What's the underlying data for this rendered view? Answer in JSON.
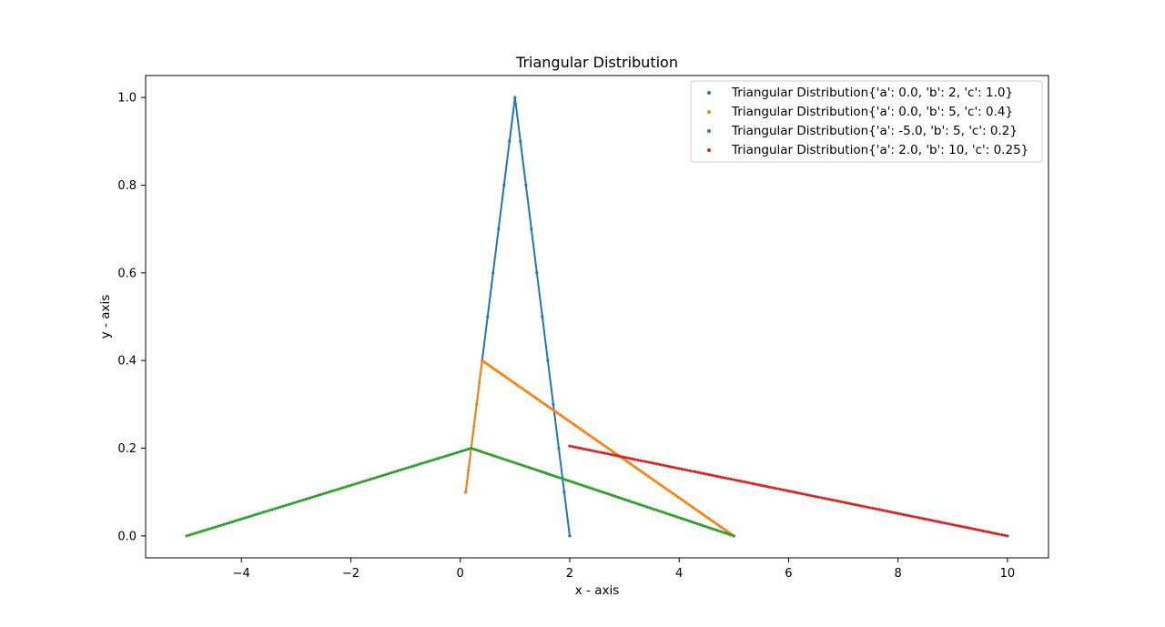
{
  "chart_data": {
    "type": "line",
    "title": "Triangular Distribution",
    "xlabel": "x - axis",
    "ylabel": "y - axis",
    "xlim": [
      -5.75,
      10.75
    ],
    "ylim": [
      -0.05,
      1.05
    ],
    "xticks": [
      -4,
      -2,
      0,
      2,
      4,
      6,
      8,
      10
    ],
    "yticks": [
      0.0,
      0.2,
      0.4,
      0.6,
      0.8,
      1.0
    ],
    "xtick_labels": [
      "−4",
      "−2",
      "0",
      "2",
      "4",
      "6",
      "8",
      "10"
    ],
    "ytick_labels": [
      "0.0",
      "0.2",
      "0.4",
      "0.6",
      "0.8",
      "1.0"
    ],
    "grid": false,
    "legend_position": "top-right",
    "series": [
      {
        "name": "Triangular Distribution{'a': 0.0, 'b': 2, 'c': 1.0}",
        "color": "#1f77b4",
        "x": [
          1.0,
          1.1,
          1.2,
          1.3,
          1.4,
          1.5,
          1.6,
          1.7,
          1.8,
          1.9,
          2.0
        ],
        "y": [
          1.0,
          0.9,
          0.8,
          0.7,
          0.6,
          0.5,
          0.4,
          0.3,
          0.2,
          0.1,
          0.0
        ],
        "points_left": [
          [
            0.9,
            0.9
          ],
          [
            0.8,
            0.8
          ],
          [
            0.7,
            0.7
          ],
          [
            0.6,
            0.6
          ],
          [
            0.5,
            0.5
          ],
          [
            0.4,
            0.4
          ],
          [
            0.3,
            0.3
          ],
          [
            0.2,
            0.2
          ],
          [
            0.1,
            0.1
          ]
        ]
      },
      {
        "name": "Triangular Distribution{'a': 0.0, 'b': 5, 'c': 0.4}",
        "color": "#ff7f0e",
        "peak": [
          0.4,
          0.4
        ],
        "start": [
          0.1,
          0.1
        ],
        "end": [
          5.0,
          0.0
        ]
      },
      {
        "name": "Triangular Distribution{'a': -5.0, 'b': 5, 'c': 0.2}",
        "color": "#2ca02c",
        "peak": [
          0.2,
          0.2
        ],
        "start": [
          -5.0,
          0.0
        ],
        "end": [
          5.0,
          0.0
        ]
      },
      {
        "name": "Triangular Distribution{'a': 2.0, 'b': 10, 'c': 0.25}",
        "color": "#d62728",
        "start": [
          2.0,
          0.205
        ],
        "end": [
          10.0,
          0.0
        ]
      }
    ]
  }
}
